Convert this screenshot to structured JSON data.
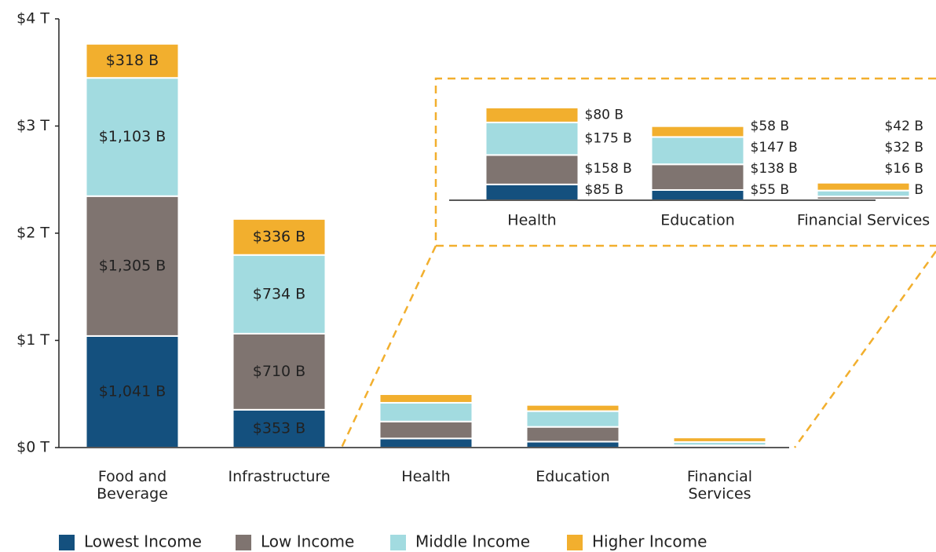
{
  "chart_data": [
    {
      "type": "bar",
      "stacked": true,
      "categories": [
        "Food and Beverage",
        "Infrastructure",
        "Health",
        "Education",
        "Financial Services"
      ],
      "ylim": [
        0,
        4
      ],
      "yticks": [
        {
          "value": 0,
          "label": "$0 T"
        },
        {
          "value": 1,
          "label": "$1 T"
        },
        {
          "value": 2,
          "label": "$2 T"
        },
        {
          "value": 3,
          "label": "$3 T"
        },
        {
          "value": 4,
          "label": "$4 T"
        }
      ],
      "legend": "bottom",
      "series": [
        {
          "name": "Lowest Income",
          "color": "#14507e",
          "values": [
            1.041,
            0.353,
            0.085,
            0.055,
            0.004
          ],
          "value_labels": [
            "$1,041 B",
            "$353 B",
            null,
            null,
            null
          ]
        },
        {
          "name": "Low Income",
          "color": "#7f7470",
          "values": [
            1.305,
            0.71,
            0.158,
            0.138,
            0.016
          ],
          "value_labels": [
            "$1,305 B",
            "$710 B",
            null,
            null,
            null
          ]
        },
        {
          "name": "Middle Income",
          "color": "#a2dbe0",
          "values": [
            1.103,
            0.734,
            0.175,
            0.147,
            0.032
          ],
          "value_labels": [
            "$1,103 B",
            "$734 B",
            null,
            null,
            null
          ]
        },
        {
          "name": "Higher Income",
          "color": "#f2af2e",
          "values": [
            0.318,
            0.336,
            0.08,
            0.058,
            0.042
          ],
          "value_labels": [
            "$318 B",
            "$336 B",
            null,
            null,
            null
          ]
        }
      ]
    },
    {
      "type": "bar",
      "stacked": true,
      "categories": [
        "Health",
        "Education",
        "Financial Services"
      ],
      "ylim": [
        0,
        0.5
      ],
      "series": [
        {
          "color": "#14507e",
          "values": [
            0.085,
            0.055,
            0.004
          ],
          "value_labels": [
            "$85 B",
            "$55 B",
            "$4 B"
          ]
        },
        {
          "color": "#7f7470",
          "values": [
            0.158,
            0.138,
            0.016
          ],
          "value_labels": [
            "$158 B",
            "$138 B",
            "$16 B"
          ]
        },
        {
          "color": "#a2dbe0",
          "values": [
            0.175,
            0.147,
            0.032
          ],
          "value_labels": [
            "$175 B",
            "$147 B",
            "$32 B"
          ]
        },
        {
          "color": "#f2af2e",
          "values": [
            0.08,
            0.058,
            0.042
          ],
          "value_labels": [
            "$80 B",
            "$58 B",
            "$42 B"
          ]
        }
      ]
    }
  ]
}
